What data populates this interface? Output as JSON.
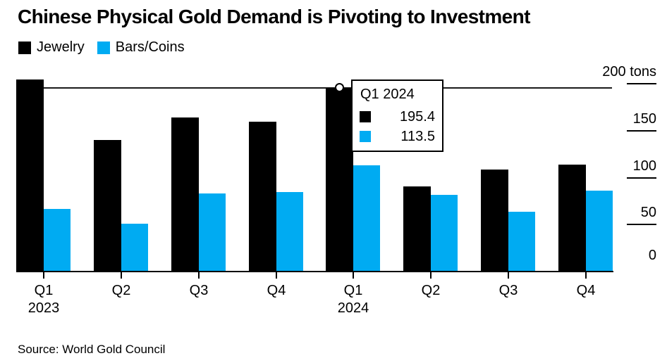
{
  "title": "Chinese Physical Gold Demand is Pivoting to Investment",
  "legend": [
    {
      "label": "Jewelry",
      "color": "#000000"
    },
    {
      "label": "Bars/Coins",
      "color": "#00abf2"
    }
  ],
  "tooltip": {
    "title": "Q1 2024",
    "rows": [
      {
        "series": "Jewelry",
        "color": "#000000",
        "value": "195.4"
      },
      {
        "series": "Bars/Coins",
        "color": "#00abf2",
        "value": "113.5"
      }
    ]
  },
  "y_axis": {
    "unit": "tons",
    "top_label": "200 tons",
    "ticks": [
      200,
      150,
      100,
      50,
      0
    ]
  },
  "source": "Source: World Gold Council",
  "chart_data": {
    "type": "bar",
    "title": "Chinese Physical Gold Demand is Pivoting to Investment",
    "categories": [
      "Q1 2023",
      "Q2 2023",
      "Q3 2023",
      "Q4 2023",
      "Q1 2024",
      "Q2 2024",
      "Q3 2024",
      "Q4 2024"
    ],
    "x_tick_line1": [
      "Q1",
      "Q2",
      "Q3",
      "Q4",
      "Q1",
      "Q2",
      "Q3",
      "Q4"
    ],
    "x_tick_line2": [
      "2023",
      "",
      "",
      "",
      "2024",
      "",
      "",
      ""
    ],
    "series": [
      {
        "name": "Jewelry",
        "color": "#000000",
        "values": [
          205,
          140,
          164,
          160,
          195.4,
          91,
          109,
          114
        ]
      },
      {
        "name": "Bars/Coins",
        "color": "#00abf2",
        "values": [
          67,
          51,
          83,
          85,
          113.5,
          82,
          64,
          86
        ]
      }
    ],
    "xlabel": "",
    "ylabel": "tons",
    "ylim": [
      0,
      200
    ],
    "grid": false,
    "legend_position": "top-left",
    "axis_labels_position": "right",
    "highlight": {
      "category": "Q1 2024",
      "crosshair_value": 195.4,
      "marker_series": "Jewelry"
    }
  }
}
